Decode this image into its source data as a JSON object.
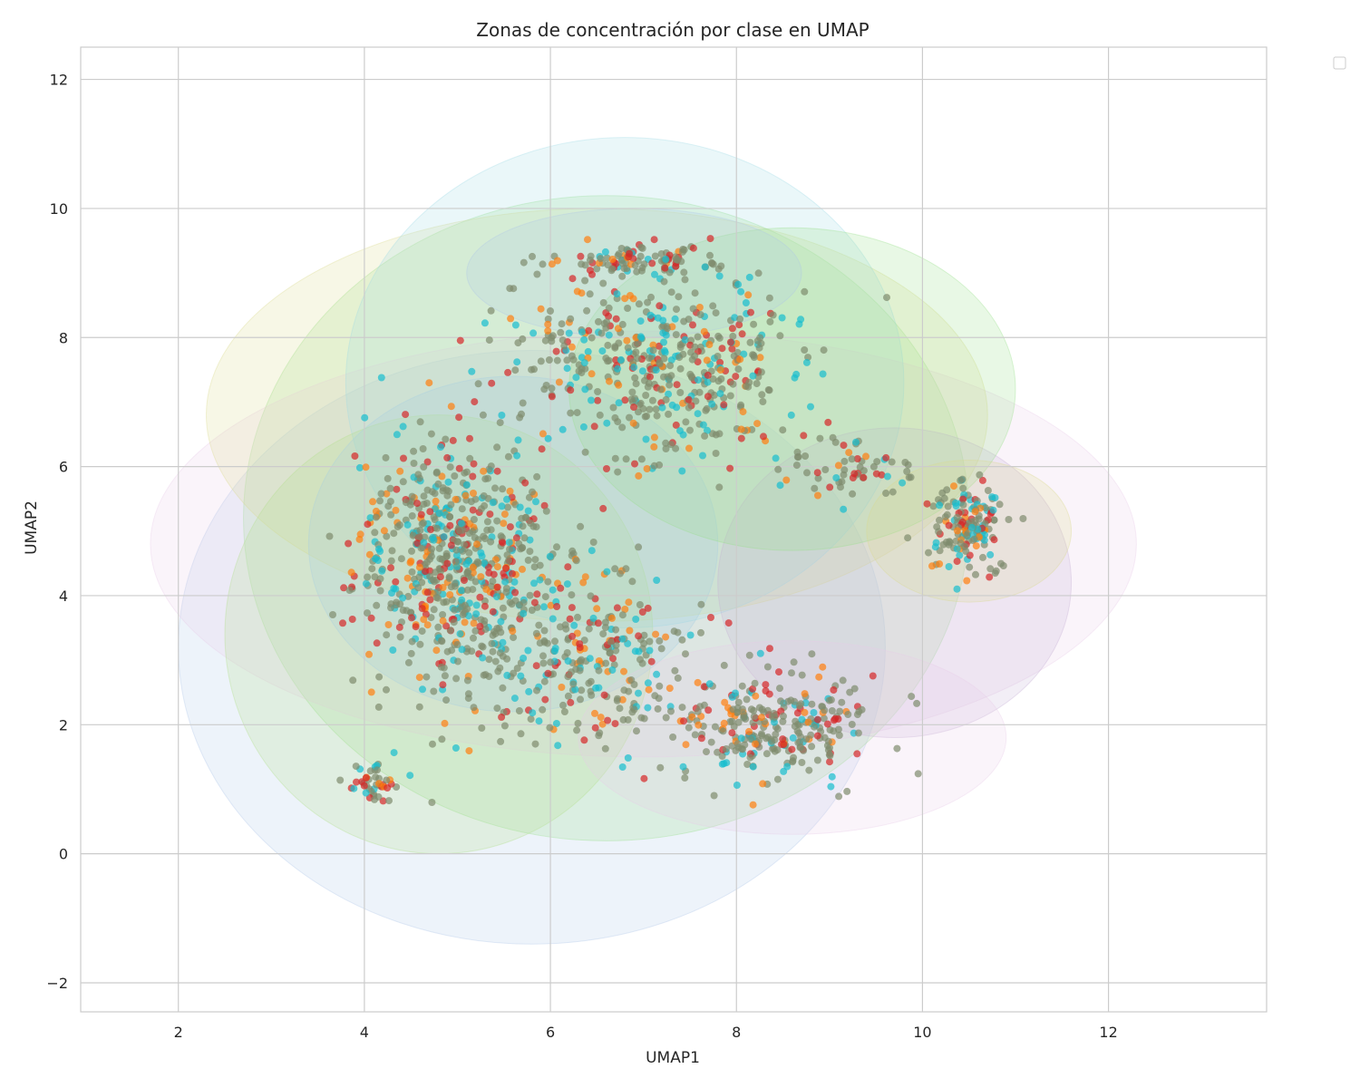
{
  "chart_data": {
    "type": "scatter",
    "title": "Zonas de concentración por clase en UMAP",
    "xlabel": "UMAP1",
    "ylabel": "UMAP2",
    "xlim": [
      0.95,
      13.7
    ],
    "ylim": [
      -2.45,
      12.5
    ],
    "xticks": [
      2,
      4,
      6,
      8,
      10,
      12
    ],
    "yticks": [
      -2,
      0,
      2,
      4,
      6,
      8,
      10,
      12
    ],
    "xtick_labels": [
      "2",
      "4",
      "6",
      "8",
      "10",
      "12"
    ],
    "ytick_labels": [
      "−2",
      "0",
      "2",
      "4",
      "6",
      "8",
      "10",
      "12"
    ],
    "grid": true,
    "legend": "empty box, upper right outside the plot",
    "point_colors": [
      "#7f8c6e",
      "#17becf",
      "#d62728",
      "#ff7f0e"
    ],
    "density_fill_colors": [
      "#a6cee3",
      "#b2df8a",
      "#98df8a",
      "#e7cbe8",
      "#c5b0d5",
      "#dbdb8d",
      "#9edae5",
      "#aec7e8"
    ],
    "density_zones": [
      {
        "color": "#aec7e8",
        "cx": 5.8,
        "cy": 3.2,
        "rx": 3.8,
        "ry": 4.6
      },
      {
        "color": "#98df8a",
        "cx": 6.6,
        "cy": 5.2,
        "rx": 3.9,
        "ry": 5.0
      },
      {
        "color": "#e7cbe8",
        "cx": 7.0,
        "cy": 4.8,
        "rx": 5.3,
        "ry": 3.3
      },
      {
        "color": "#dbdb8d",
        "cx": 6.5,
        "cy": 6.8,
        "rx": 4.2,
        "ry": 3.2
      },
      {
        "color": "#9edae5",
        "cx": 6.8,
        "cy": 7.3,
        "rx": 3.0,
        "ry": 3.8
      },
      {
        "color": "#c5b0d5",
        "cx": 9.7,
        "cy": 4.2,
        "rx": 1.9,
        "ry": 2.4
      },
      {
        "color": "#b2df8a",
        "cx": 4.8,
        "cy": 3.4,
        "rx": 2.3,
        "ry": 3.4
      },
      {
        "color": "#a6cee3",
        "cx": 5.6,
        "cy": 4.8,
        "rx": 2.2,
        "ry": 2.6
      },
      {
        "color": "#98df8a",
        "cx": 8.6,
        "cy": 7.2,
        "rx": 2.4,
        "ry": 2.5
      },
      {
        "color": "#e7cbe8",
        "cx": 8.6,
        "cy": 1.8,
        "rx": 2.3,
        "ry": 1.5
      },
      {
        "color": "#dbdb8d",
        "cx": 10.5,
        "cy": 5.0,
        "rx": 1.1,
        "ry": 1.1
      },
      {
        "color": "#aec7e8",
        "cx": 6.9,
        "cy": 9.0,
        "rx": 1.8,
        "ry": 1.0
      }
    ],
    "point_clusters": [
      {
        "cx": 5.0,
        "cy": 4.5,
        "sx": 0.9,
        "sy": 1.6,
        "n": 700
      },
      {
        "cx": 7.2,
        "cy": 7.6,
        "sx": 1.3,
        "sy": 1.2,
        "n": 500
      },
      {
        "cx": 7.0,
        "cy": 9.2,
        "sx": 0.9,
        "sy": 0.2,
        "n": 100
      },
      {
        "cx": 8.4,
        "cy": 2.0,
        "sx": 0.9,
        "sy": 0.7,
        "n": 300
      },
      {
        "cx": 10.5,
        "cy": 5.0,
        "sx": 0.35,
        "sy": 0.55,
        "n": 160
      },
      {
        "cx": 4.1,
        "cy": 1.1,
        "sx": 0.2,
        "sy": 0.3,
        "n": 45
      },
      {
        "cx": 6.5,
        "cy": 3.0,
        "sx": 1.0,
        "sy": 1.2,
        "n": 250
      },
      {
        "cx": 9.2,
        "cy": 6.0,
        "sx": 0.5,
        "sy": 0.4,
        "n": 60
      }
    ]
  }
}
